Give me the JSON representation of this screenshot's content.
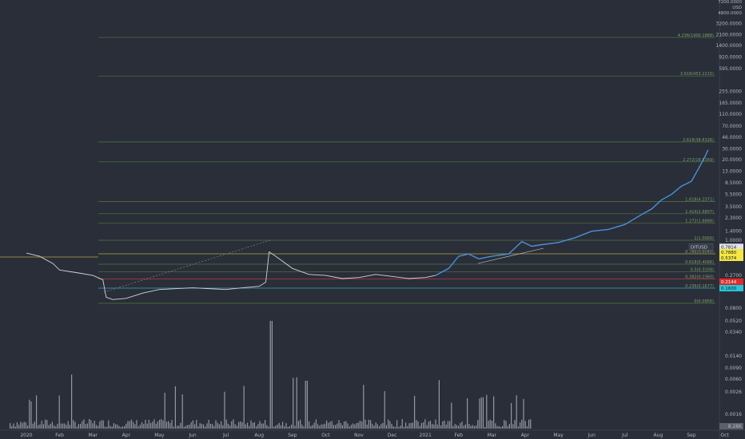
{
  "chart_data": {
    "type": "line",
    "symbol": "DITUSD",
    "scale": "log",
    "price_scale_header": [
      "7200.0000",
      "USD",
      "4800.0000"
    ],
    "price_ticks": [
      3200,
      2100,
      1400,
      920,
      595,
      255,
      165,
      110,
      70,
      46,
      30,
      20,
      13,
      8.5,
      5.5,
      3.5,
      2.3,
      1.4,
      1.0,
      0.27,
      0.08
    ],
    "price_tick_labels": [
      "3200.0000",
      "2100.0000",
      "1400.0000",
      "920.0000",
      "595.0000",
      "255.0000",
      "165.0000",
      "110.0000",
      "70.0000",
      "46.0000",
      "30.0000",
      "20.0000",
      "13.0000",
      "8.5000",
      "5.5000",
      "3.5000",
      "2.3000",
      "1.4000",
      "1.0000",
      "0.2700",
      "0.0800"
    ],
    "volume_ticks": [
      0.052,
      0.034,
      0.014,
      0.009,
      0.006,
      0.0026,
      0.0016
    ],
    "volume_tick_labels": [
      "0.0520",
      "0.0340",
      "0.0140",
      "0.0090",
      "0.0060",
      "0.0026",
      "0.0016"
    ],
    "volume_last_label": "8.28K",
    "x_labels": [
      "2020",
      "Feb",
      "Mar",
      "Apr",
      "May",
      "Jun",
      "Jul",
      "Aug",
      "Sep",
      "Oct",
      "Nov",
      "Dec",
      "2021",
      "Feb",
      "Mar",
      "Apr",
      "May",
      "Jun",
      "Jul",
      "Aug",
      "Sep",
      "Oct"
    ],
    "fib_levels": [
      {
        "label": "4.236(1900.1888)",
        "price": 1900
      },
      {
        "label": "3.618(453.2215)",
        "price": 453
      },
      {
        "label": "2.618(38.8326)",
        "price": 38.8
      },
      {
        "label": "2.272(18.5269)",
        "price": 18.5
      },
      {
        "label": "1.618(4.2371)",
        "price": 4.24
      },
      {
        "label": "1.414(2.6807)",
        "price": 2.68
      },
      {
        "label": "1.272(1.8888)",
        "price": 1.89
      },
      {
        "label": "1(1.0000)",
        "price": 1.0
      },
      {
        "label": "0.786(0.6040)",
        "price": 0.604
      },
      {
        "label": "0.618(0.4096)",
        "price": 0.41
      },
      {
        "label": "0.5(0.3109)",
        "price": 0.311
      },
      {
        "label": "0.382(0.2360)",
        "price": 0.236
      },
      {
        "label": "0.236(0.1677)",
        "price": 0.168
      },
      {
        "label": "0(0.0956)",
        "price": 0.0956
      }
    ],
    "price_tags": [
      {
        "label": "0.7814",
        "price": 0.7814,
        "bg": "#e0e3eb",
        "fg": "#131722"
      },
      {
        "label": "0.7880",
        "price": 0.64,
        "bg": "#f5e642",
        "fg": "#131722"
      },
      {
        "label": "0.5374",
        "price": 0.52,
        "bg": "#f5e642",
        "fg": "#131722"
      },
      {
        "label": "0.2144",
        "price": 0.214,
        "bg": "#e02c2c",
        "fg": "#ffffff"
      },
      {
        "label": "0.1600",
        "price": 0.168,
        "bg": "#26c6da",
        "fg": "#131722"
      }
    ],
    "series_2020_price": [
      {
        "t": 0.0,
        "p": 0.62
      },
      {
        "t": 0.4,
        "p": 0.55
      },
      {
        "t": 0.8,
        "p": 0.42
      },
      {
        "t": 1.0,
        "p": 0.33
      },
      {
        "t": 1.5,
        "p": 0.3
      },
      {
        "t": 2.0,
        "p": 0.27
      },
      {
        "t": 2.3,
        "p": 0.23
      },
      {
        "t": 2.4,
        "p": 0.12
      },
      {
        "t": 2.6,
        "p": 0.11
      },
      {
        "t": 3.0,
        "p": 0.115
      },
      {
        "t": 3.5,
        "p": 0.14
      },
      {
        "t": 4.0,
        "p": 0.16
      },
      {
        "t": 5.0,
        "p": 0.17
      },
      {
        "t": 6.0,
        "p": 0.16
      },
      {
        "t": 6.5,
        "p": 0.17
      },
      {
        "t": 7.0,
        "p": 0.18
      },
      {
        "t": 7.2,
        "p": 0.21
      },
      {
        "t": 7.3,
        "p": 0.65
      },
      {
        "t": 7.5,
        "p": 0.55
      },
      {
        "t": 8.0,
        "p": 0.35
      },
      {
        "t": 8.5,
        "p": 0.28
      },
      {
        "t": 9.0,
        "p": 0.27
      },
      {
        "t": 9.5,
        "p": 0.24
      },
      {
        "t": 10.0,
        "p": 0.25
      },
      {
        "t": 10.5,
        "p": 0.28
      },
      {
        "t": 11.0,
        "p": 0.26
      },
      {
        "t": 11.5,
        "p": 0.24
      },
      {
        "t": 12.0,
        "p": 0.25
      },
      {
        "t": 12.3,
        "p": 0.27
      }
    ],
    "series_2021_price": [
      {
        "t": 12.3,
        "p": 0.27
      },
      {
        "t": 12.7,
        "p": 0.35
      },
      {
        "t": 13.0,
        "p": 0.55
      },
      {
        "t": 13.3,
        "p": 0.6
      },
      {
        "t": 13.6,
        "p": 0.5
      },
      {
        "t": 14.0,
        "p": 0.55
      },
      {
        "t": 14.5,
        "p": 0.6
      },
      {
        "t": 14.9,
        "p": 0.95
      },
      {
        "t": 15.2,
        "p": 0.8
      },
      {
        "t": 15.5,
        "p": 0.85
      },
      {
        "t": 16.0,
        "p": 0.92
      },
      {
        "t": 16.5,
        "p": 1.1
      },
      {
        "t": 17.0,
        "p": 1.4
      },
      {
        "t": 17.5,
        "p": 1.5
      },
      {
        "t": 18.0,
        "p": 1.8
      },
      {
        "t": 18.5,
        "p": 2.6
      },
      {
        "t": 18.8,
        "p": 3.2
      },
      {
        "t": 19.1,
        "p": 4.5
      },
      {
        "t": 19.4,
        "p": 5.5
      },
      {
        "t": 19.7,
        "p": 7.5
      },
      {
        "t": 20.0,
        "p": 9.0
      },
      {
        "t": 20.2,
        "p": 14.0
      },
      {
        "t": 20.4,
        "p": 22.0
      },
      {
        "t": 20.5,
        "p": 29.0
      }
    ]
  }
}
